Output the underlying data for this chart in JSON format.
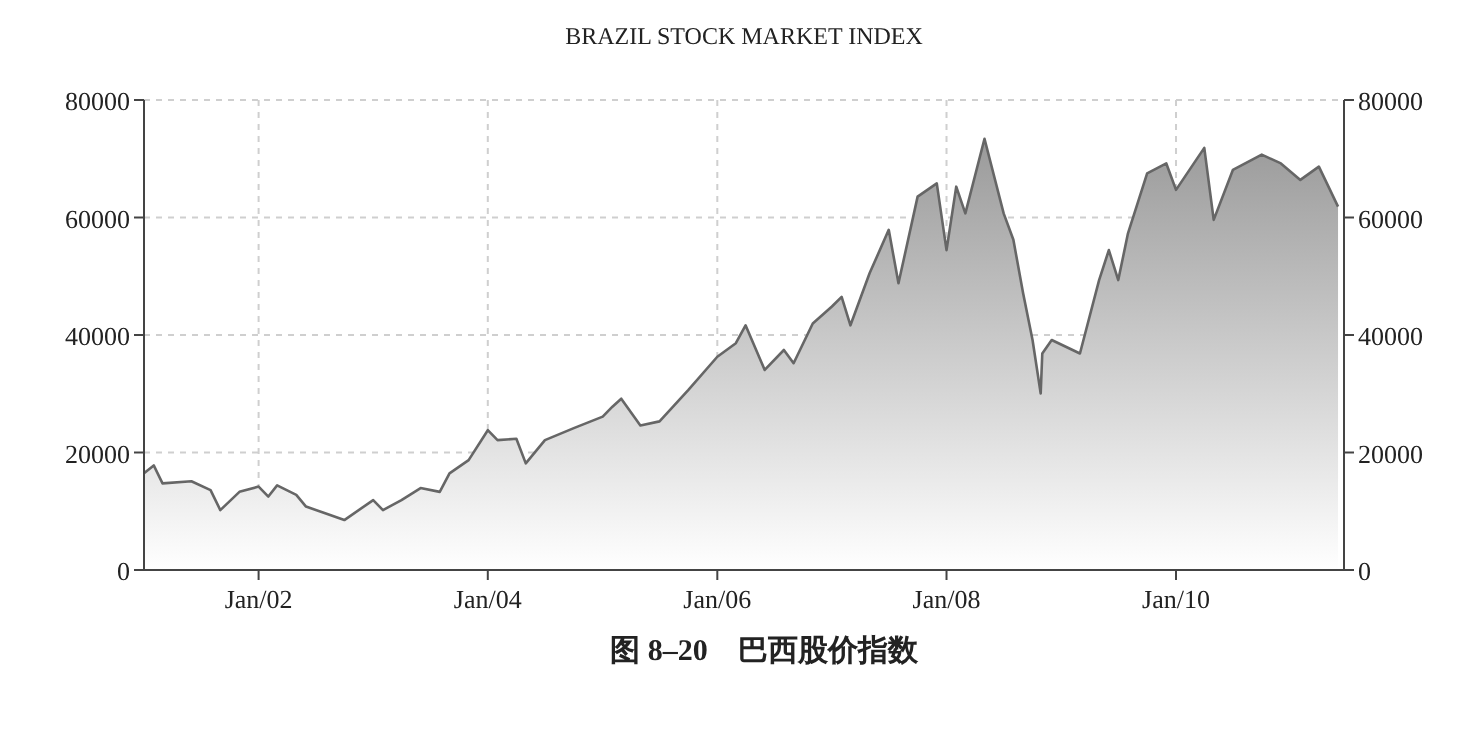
{
  "chart_data": {
    "type": "area",
    "title": "BRAZIL STOCK MARKET INDEX",
    "annotations": [
      "图 8–20　巴西股价指数"
    ],
    "x": [
      "2001-01",
      "2001-02",
      "2001-03",
      "2001-06",
      "2001-08",
      "2001-09",
      "2001-11",
      "2002-01",
      "2002-02",
      "2002-03",
      "2002-05",
      "2002-06",
      "2002-08",
      "2002-10",
      "2003-01",
      "2003-02",
      "2003-04",
      "2003-06",
      "2003-08",
      "2003-09",
      "2003-11",
      "2004-01",
      "2004-02",
      "2004-04",
      "2004-05",
      "2004-07",
      "2004-10",
      "2005-01",
      "2005-02",
      "2005-03",
      "2005-05",
      "2005-07",
      "2005-10",
      "2006-01",
      "2006-03",
      "2006-04",
      "2006-06",
      "2006-08",
      "2006-09",
      "2006-11",
      "2007-01",
      "2007-02",
      "2007-03",
      "2007-05",
      "2007-07",
      "2007-08",
      "2007-10",
      "2007-12",
      "2008-01",
      "2008-02",
      "2008-03",
      "2008-05",
      "2008-07",
      "2008-08",
      "2008-09",
      "2008-10-01",
      "2008-10-27",
      "2008-11",
      "2008-12",
      "2009-03",
      "2009-05",
      "2009-06",
      "2009-07",
      "2009-08",
      "2009-10",
      "2009-12",
      "2010-01",
      "2010-04",
      "2010-05",
      "2010-07",
      "2010-10",
      "2010-12",
      "2011-02",
      "2011-04",
      "2011-06"
    ],
    "series": [
      {
        "color": "#666666",
        "values": [
          16450,
          17800,
          14750,
          15100,
          13600,
          10200,
          13300,
          14200,
          12500,
          14400,
          12800,
          10800,
          9650,
          8500,
          11900,
          10200,
          11900,
          13950,
          13300,
          16450,
          18700,
          23800,
          22100,
          22350,
          18150,
          22100,
          24150,
          26100,
          27800,
          29150,
          24600,
          25300,
          30650,
          36300,
          38600,
          41650,
          34050,
          37450,
          35200,
          41950,
          44850,
          46500,
          41650,
          50500,
          57900,
          48800,
          63550,
          65800,
          54450,
          65250,
          60700,
          73400,
          60700,
          56200,
          47100,
          39150,
          30050,
          36850,
          39150,
          36850,
          49350,
          54450,
          49350,
          57300,
          67500,
          69200,
          64700,
          71850,
          59600,
          68100,
          70700,
          69200,
          66400,
          68650,
          61850
        ]
      }
    ],
    "xlim": [
      "2001-01-01",
      "2011-06-20"
    ],
    "xticks": [
      {
        "value": "2002-01",
        "label": "Jan/02"
      },
      {
        "value": "2004-01",
        "label": "Jan/04"
      },
      {
        "value": "2006-01",
        "label": "Jan/06"
      },
      {
        "value": "2008-01",
        "label": "Jan/08"
      },
      {
        "value": "2010-01",
        "label": "Jan/10"
      }
    ],
    "ylim": [
      0,
      80000
    ],
    "yticks": [
      0,
      20000,
      40000,
      60000,
      80000
    ],
    "y2lim": [
      0,
      80000
    ],
    "y2ticks": [
      0,
      20000,
      40000,
      60000,
      80000
    ],
    "grid": true
  }
}
